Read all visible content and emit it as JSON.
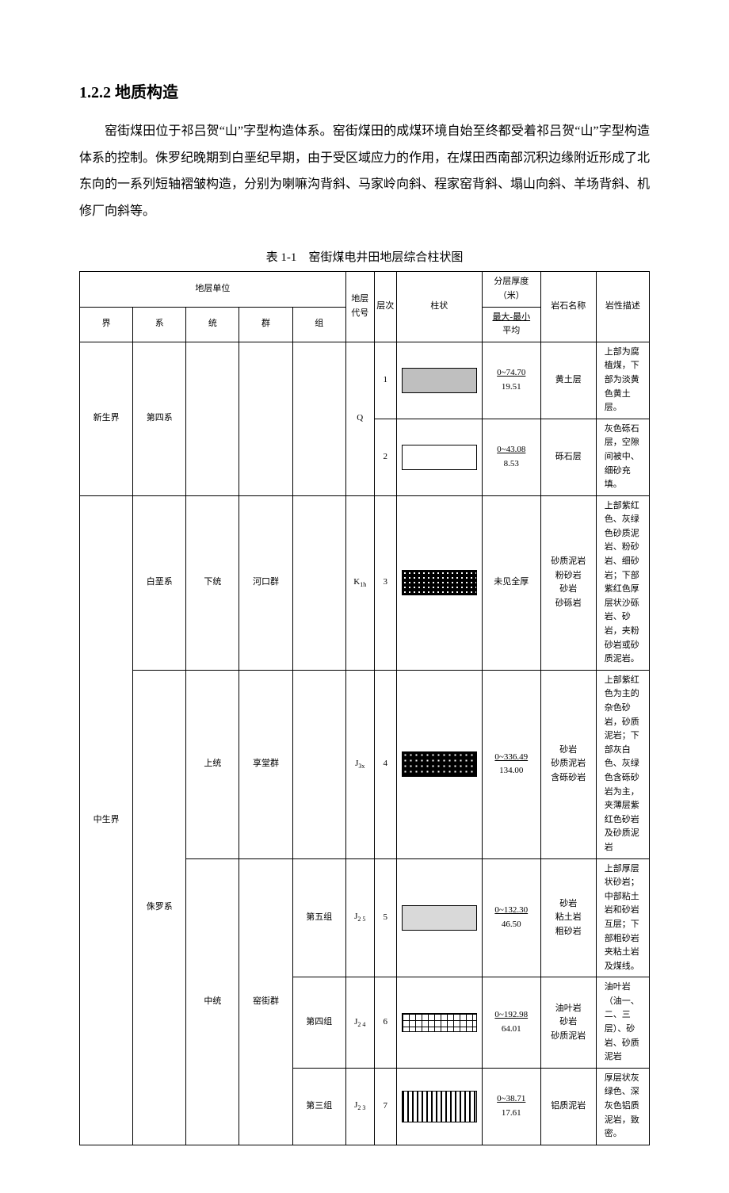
{
  "heading": "1.2.2 地质构造",
  "paragraph": "窑街煤田位于祁吕贺“山”字型构造体系。窑街煤田的成煤环境自始至终都受着祁吕贺“山”字型构造体系的控制。侏罗纪晚期到白垩纪早期，由于受区域应力的作用，在煤田西南部沉积边缘附近形成了北东向的一系列短轴褶皱构造，分别为喇嘛沟背斜、马家岭向斜、程家窑背斜、塌山向斜、羊场背斜、机修厂向斜等。",
  "tableCaption": "表 1-1 窑街煤电井田地层综合柱状图",
  "header": {
    "unitGroup": "地层单位",
    "jie": "界",
    "xi": "系",
    "tong": "统",
    "qun": "群",
    "zu": "组",
    "codeTop": "地层代号",
    "seqTop": "层次",
    "pattern": "柱状",
    "thickTop": "分层厚度（米）",
    "thickBot": "最大-最小",
    "thickBot2": "平均",
    "rockName": "岩石名称",
    "rockDesc": "岩性描述"
  },
  "jie": {
    "xin": "新生界",
    "zhong": "中生界"
  },
  "xi": {
    "disi": "第四系",
    "bai": "白垩系",
    "zhu": "侏罗系"
  },
  "tong": {
    "xia": "下统",
    "shang": "上统",
    "zhong": "中统"
  },
  "qun": {
    "hekou": "河口群",
    "xiangtang": "享堂群",
    "yaojie": "窑街群"
  },
  "zu": {
    "wu": "第五组",
    "si": "第四组",
    "san": "第三组"
  },
  "codes": {
    "q": "Q",
    "k1h": "K",
    "j3x": "J",
    "j25": "J",
    "j24": "J",
    "j23": "J"
  },
  "codeSubs": {
    "k1h": "1h",
    "j3x": "3x",
    "j25": "2 5",
    "j24": "2 4",
    "j23": "2 3"
  },
  "rows": {
    "r1": {
      "seq": "1",
      "thick1": "0~74.70",
      "thick2": "19.51",
      "name": "黄土层",
      "desc": "上部为腐植煤，下部为淡黄色黄土层。"
    },
    "r2": {
      "seq": "2",
      "thick1": "0~43.08",
      "thick2": "8.53",
      "name": "砾石层",
      "desc": "灰色砾石层，空隙间被中、细砂充填。"
    },
    "r3": {
      "seq": "3",
      "thick1": "未见全厚",
      "name1": "砂质泥岩",
      "name2": "粉砂岩",
      "name3": "砂岩",
      "name4": "砂砾岩",
      "desc": "上部紫红色、灰绿色砂质泥岩、粉砂岩、细砂岩；下部紫红色厚层状沙砾岩、砂岩，夹粉砂岩或砂质泥岩。"
    },
    "r4": {
      "seq": "4",
      "thick1": "0~336.49",
      "thick2": "134.00",
      "name1": "砂岩",
      "name2": "砂质泥岩",
      "name3": "含砾砂岩",
      "desc": "上部紫红色为主的杂色砂岩，砂质泥岩；下部灰白色、灰绿色含砾砂岩为主，夹薄层紫红色砂岩及砂质泥岩"
    },
    "r5": {
      "seq": "5",
      "thick1": "0~132.30",
      "thick2": "46.50",
      "name1": "砂岩",
      "name2": "粘土岩",
      "name3": "粗砂岩",
      "desc": "上部厚层状砂岩；中部粘土岩和砂岩互层；下部粗砂岩夹粘土岩及煤线。"
    },
    "r6": {
      "seq": "6",
      "thick1": "0~192.98",
      "thick2": "64.01",
      "name1": "油叶岩",
      "name2": "砂岩",
      "name3": "砂质泥岩",
      "desc": "油叶岩（油一、二、三层）、砂岩、砂质泥岩"
    },
    "r7": {
      "seq": "7",
      "thick1": "0~38.71",
      "thick2": "17.61",
      "name": "铝质泥岩",
      "desc": "厚层状灰绿色、深灰色铝质泥岩，致密。"
    }
  }
}
